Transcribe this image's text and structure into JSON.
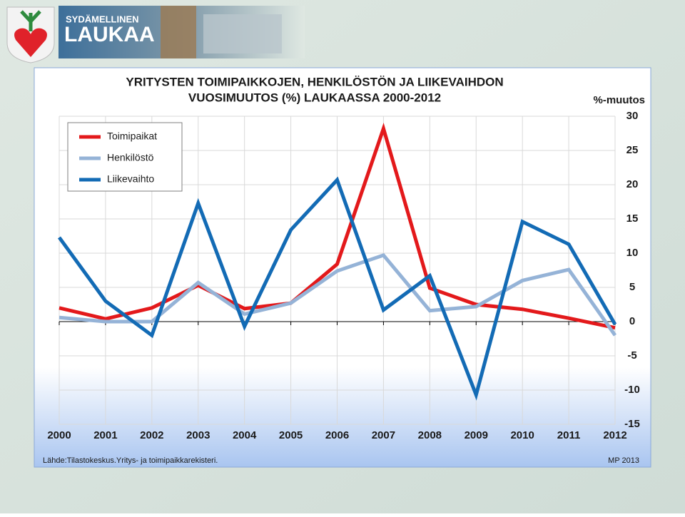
{
  "logo": {
    "tagline": "SYDÄMELLINEN",
    "name": "LAUKAA"
  },
  "chart_data": {
    "type": "line",
    "title": [
      "YRITYSTEN TOIMIPAIKKOJEN, HENKILÖSTÖN JA LIIKEVAIHDON",
      "VUOSIMUUTOS (%) LAUKAASSA 2000-2012"
    ],
    "y_label": "%-muutos",
    "categories": [
      "2000",
      "2001",
      "2002",
      "2003",
      "2004",
      "2005",
      "2006",
      "2007",
      "2008",
      "2009",
      "2010",
      "2011",
      "2012"
    ],
    "series": [
      {
        "name": "Toimipaikat",
        "color": "#e3191b",
        "values": [
          2.0,
          0.4,
          2.0,
          5.3,
          1.9,
          2.7,
          8.4,
          28.2,
          4.9,
          2.5,
          1.8,
          0.5,
          -0.9
        ]
      },
      {
        "name": "Henkilöstö",
        "color": "#95b3d7",
        "values": [
          0.6,
          0,
          0,
          5.7,
          1.1,
          2.7,
          7.4,
          9.7,
          1.6,
          2.2,
          6.0,
          7.6,
          -2.0
        ]
      },
      {
        "name": "Liikevaihto",
        "color": "#136bb5",
        "values": [
          12.3,
          3.0,
          -2.0,
          17.3,
          -0.7,
          13.4,
          20.7,
          1.7,
          6.7,
          -10.7,
          14.6,
          11.3,
          -0.4
        ]
      }
    ],
    "ylim": [
      -15,
      30
    ],
    "yticks": [
      -15,
      -10,
      -5,
      0,
      5,
      10,
      15,
      20,
      25,
      30
    ],
    "grid": true,
    "legend": "upper left",
    "source": "Lähde:Tilastokeskus.Yritys- ja toimipaikkarekisteri.",
    "credit": "MP 2013"
  }
}
